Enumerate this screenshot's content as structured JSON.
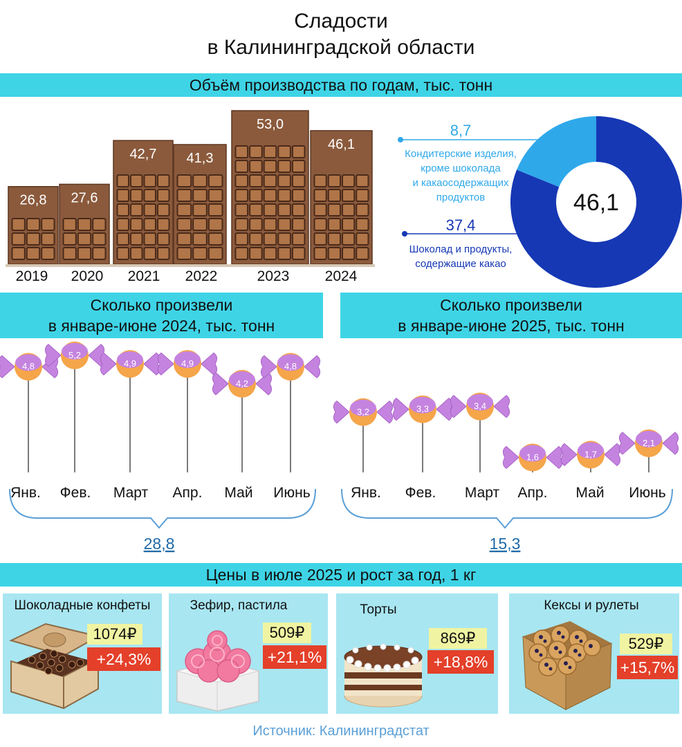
{
  "header": {
    "title_line1": "Сладости",
    "title_line2": "в Калининградской области"
  },
  "sections": {
    "volume_title": "Объём производства по годам, тыс. тонн",
    "h1_2024_line1": "Сколько произвели",
    "h1_2024_line2": "в январе-июне 2024, тыс. тонн",
    "h1_2025_line1": "Сколько произвели",
    "h1_2025_line2": "в январе-июне 2025, тыс. тонн",
    "prices_title": "Цены в июле 2025 и рост за год, 1 кг"
  },
  "colors": {
    "band": "#3ed4e6",
    "chocolate": "#8b5a3c",
    "chocolate_dark": "#4a2a1a",
    "donut_dark": "#1638b4",
    "donut_light": "#2fa8ea",
    "candy": "#c583e0",
    "candy_center": "#f5a54a",
    "brace": "#5a9fd8",
    "price_bg": "#f0f4a2",
    "growth_bg": "#e4402a",
    "card_bg": "#a8e6f1"
  },
  "chart_data": [
    {
      "type": "bar",
      "categories": [
        "2019",
        "2020",
        "2021",
        "2022",
        "2023",
        "2024"
      ],
      "values": [
        26.8,
        27.6,
        42.7,
        41.3,
        53.0,
        46.1
      ],
      "value_labels": [
        "26,8",
        "27,6",
        "42,7",
        "41,3",
        "53,0",
        "46,1"
      ],
      "ylim": [
        0,
        53.0
      ]
    },
    {
      "type": "pie",
      "donut": true,
      "center_label": "46,1",
      "slices": [
        {
          "name_line1": "Кондитерские изделия,",
          "name_line2": "кроме шоколада",
          "name_line3": "и какаосодержащих",
          "name_line4": "продуктов",
          "value": 8.7,
          "value_label": "8,7",
          "color": "#2fa8ea"
        },
        {
          "name_line1": "Шоколад и продукты,",
          "name_line2": "содержащие какао",
          "value": 37.4,
          "value_label": "37,4",
          "color": "#1638b4"
        }
      ]
    },
    {
      "type": "scatter",
      "categories": [
        "Янв.",
        "Фев.",
        "Март",
        "Апр.",
        "Май",
        "Июнь"
      ],
      "values": [
        4.8,
        5.2,
        4.9,
        4.9,
        4.2,
        4.8
      ],
      "value_labels": [
        "4,8",
        "5,2",
        "4,9",
        "4,9",
        "4,2",
        "4,8"
      ],
      "total_label": "28,8"
    },
    {
      "type": "scatter",
      "categories": [
        "Янв.",
        "Фев.",
        "Март",
        "Апр.",
        "Май",
        "Июнь"
      ],
      "values": [
        3.2,
        3.3,
        3.4,
        1.6,
        1.7,
        2.1
      ],
      "value_labels": [
        "3,2",
        "3,3",
        "3,4",
        "1,6",
        "1,7",
        "2,1"
      ],
      "total_label": "15,3"
    }
  ],
  "prices": [
    {
      "name": "Шоколадные конфеты",
      "price": "1074₽",
      "growth": "+24,3%",
      "icon": "chocolate-box-icon"
    },
    {
      "name": "Зефир, пастила",
      "price": "509₽",
      "growth": "+21,1%",
      "icon": "marshmallow-icon"
    },
    {
      "name": "Торты",
      "price": "869₽",
      "growth": "+18,8%",
      "icon": "cake-icon"
    },
    {
      "name": "Кексы и рулеты",
      "price": "529₽",
      "growth": "+15,7%",
      "icon": "muffins-icon"
    }
  ],
  "footer": {
    "source": "Источник: Калининградстат"
  }
}
